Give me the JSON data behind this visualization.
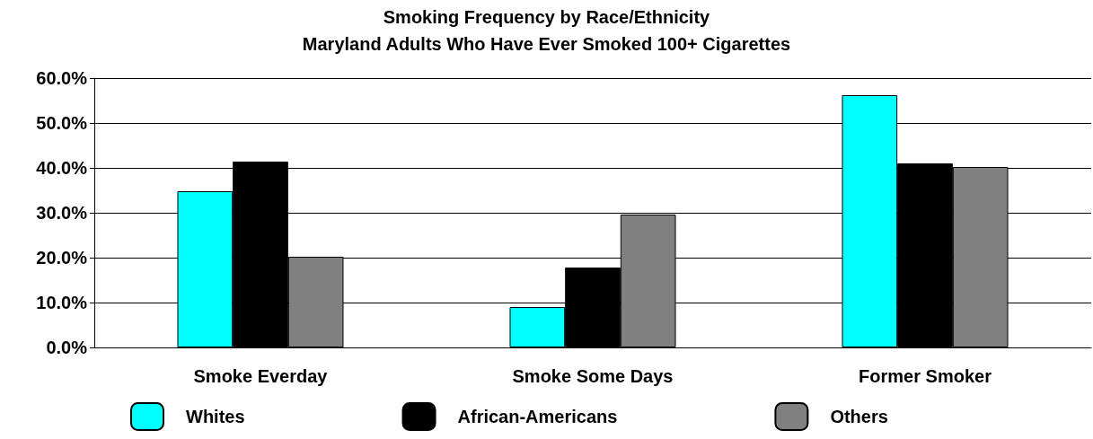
{
  "chart_data": {
    "type": "bar",
    "title": "Smoking Frequency by Race/Ethnicity",
    "subtitle": "Maryland Adults Who Have Ever Smoked 100+ Cigarettes",
    "categories": [
      "Smoke Everday",
      "Smoke Some Days",
      "Former Smoker"
    ],
    "series": [
      {
        "name": "Whites",
        "color": "#00ffff",
        "values": [
          34.8,
          9.0,
          56.2
        ]
      },
      {
        "name": "African-Americans",
        "color": "#000000",
        "values": [
          41.4,
          17.8,
          41.0
        ]
      },
      {
        "name": "Others",
        "color": "#808080",
        "values": [
          20.2,
          29.6,
          40.2
        ]
      }
    ],
    "ylim": [
      0,
      60
    ],
    "yticks": [
      {
        "value": 0,
        "label": "0.0%"
      },
      {
        "value": 10,
        "label": "10.0%"
      },
      {
        "value": 20,
        "label": "20.0%"
      },
      {
        "value": 30,
        "label": "30.0%"
      },
      {
        "value": 40,
        "label": "40.0%"
      },
      {
        "value": 50,
        "label": "50.0%"
      },
      {
        "value": 60,
        "label": "60.0%"
      }
    ],
    "grid": "y",
    "legend": "bottom"
  }
}
